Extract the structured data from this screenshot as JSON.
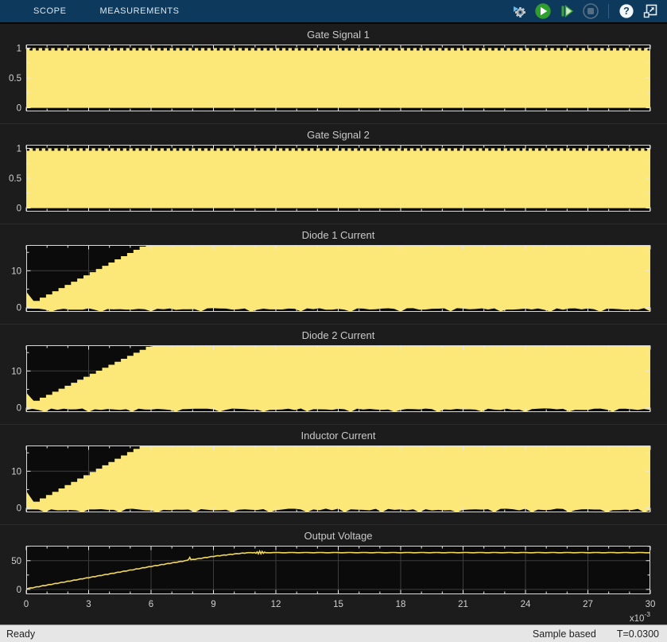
{
  "toolbar": {
    "tabs": [
      {
        "label": "SCOPE"
      },
      {
        "label": "MEASUREMENTS"
      }
    ],
    "buttons": [
      {
        "name": "simulate-settings",
        "icon": "gear-arrow-icon"
      },
      {
        "name": "run",
        "icon": "run-icon"
      },
      {
        "name": "step-forward",
        "icon": "step-forward-icon"
      },
      {
        "name": "stop",
        "icon": "stop-icon",
        "disabled": true
      },
      {
        "name": "help",
        "icon": "help-icon"
      },
      {
        "name": "pop-out",
        "icon": "popout-icon"
      }
    ]
  },
  "status_bar": {
    "left": "Ready",
    "right_primary": "Sample based",
    "right_secondary": "T=0.0300"
  },
  "colors": {
    "toolbar_bg": "#0d3a5c",
    "window_bg": "#1c1c1c",
    "plot_bg": "#0b0b0b",
    "grid": "#3d3d3d",
    "axis": "#dadada",
    "tick": "#e8e8e8",
    "fill_yellow": "#fbe878",
    "line_yellow": "#f1d75c",
    "run_green": "#2da12d",
    "status_bg": "#e6e6e6"
  },
  "chart_data": {
    "x_axis": {
      "xlim": [
        0,
        30
      ],
      "major_tick_step": 3,
      "minor_tick_step": 1,
      "tick_labels": [
        "0",
        "3",
        "6",
        "9",
        "12",
        "15",
        "18",
        "21",
        "24",
        "27",
        "30"
      ],
      "exponent_base": "x10",
      "exponent": "-3",
      "units_note": "time axis shown in seconds x10^-3"
    },
    "panels": [
      {
        "type": "pwm",
        "title": "Gate Signal 1",
        "ylim": [
          -0.06,
          1.06
        ],
        "yticks": [
          {
            "v": 0,
            "label": "0"
          },
          {
            "v": 0.5,
            "label": "0.5"
          },
          {
            "v": 1,
            "label": "1"
          }
        ],
        "yminors": [
          0.25,
          0.75
        ],
        "pwm": {
          "low": 0,
          "high": 1,
          "period_ms": 0.3,
          "on_fraction": 0.55,
          "notch_level": 0.96,
          "phase": 0
        }
      },
      {
        "type": "pwm",
        "title": "Gate Signal 2",
        "ylim": [
          -0.06,
          1.06
        ],
        "yticks": [
          {
            "v": 0,
            "label": "0"
          },
          {
            "v": 0.5,
            "label": "0.5"
          },
          {
            "v": 1,
            "label": "1"
          }
        ],
        "yminors": [
          0.25,
          0.75
        ],
        "pwm": {
          "low": 0,
          "high": 1,
          "period_ms": 0.3,
          "on_fraction": 0.55,
          "notch_level": 0.96,
          "phase": 0.5
        }
      },
      {
        "type": "current",
        "title": "Diode 1 Current",
        "ylim": [
          -1.2,
          17
        ],
        "yticks": [
          {
            "v": 0,
            "label": "0"
          },
          {
            "v": 10,
            "label": "10"
          }
        ],
        "yminors": [
          5,
          15
        ],
        "step_ms": 0.3,
        "envelope": {
          "t0_value": 4.3,
          "dip_value": 1.8,
          "dip_t_ms": 0.35,
          "saturate_t_ms": 5.6
        },
        "bottom_base": -0.2,
        "bottom_jitter": 0.45,
        "deep_spike_depth": -1.05,
        "deep_spike_period_ms": 2.3
      },
      {
        "type": "current",
        "title": "Diode 2 Current",
        "ylim": [
          -1.2,
          17
        ],
        "yticks": [
          {
            "v": 0,
            "label": "0"
          },
          {
            "v": 10,
            "label": "10"
          }
        ],
        "yminors": [
          5,
          15
        ],
        "step_ms": 0.3,
        "envelope": {
          "t0_value": 4.1,
          "dip_value": 1.9,
          "dip_t_ms": 0.35,
          "saturate_t_ms": 5.9
        },
        "bottom_base": -0.2,
        "bottom_jitter": 0.45,
        "deep_spike_depth": -1.0,
        "deep_spike_period_ms": 2.0
      },
      {
        "type": "current",
        "title": "Inductor Current",
        "ylim": [
          -1.2,
          17
        ],
        "yticks": [
          {
            "v": 0,
            "label": "0"
          },
          {
            "v": 10,
            "label": "10"
          }
        ],
        "yminors": [
          5,
          15
        ],
        "step_ms": 0.3,
        "envelope": {
          "t0_value": 4.6,
          "dip_value": 1.7,
          "dip_t_ms": 0.35,
          "saturate_t_ms": 5.45
        },
        "bottom_base": -0.2,
        "bottom_jitter": 0.5,
        "deep_spike_depth": -1.15,
        "deep_spike_period_ms": 1.8
      },
      {
        "type": "line",
        "title": "Output Voltage",
        "ylim": [
          -8.5,
          76
        ],
        "yticks": [
          {
            "v": 0,
            "label": "0"
          },
          {
            "v": 50,
            "label": "50"
          }
        ],
        "yminors": [
          25,
          75
        ],
        "show_x_labels": true,
        "points": [
          [
            0,
            1
          ],
          [
            1,
            7.5
          ],
          [
            2,
            14
          ],
          [
            3,
            20.5
          ],
          [
            4,
            27
          ],
          [
            5,
            33.5
          ],
          [
            6,
            40
          ],
          [
            7,
            46
          ],
          [
            8,
            52
          ],
          [
            9,
            57.5
          ],
          [
            9.6,
            60
          ],
          [
            10.2,
            62.5
          ],
          [
            10.7,
            63.8
          ],
          [
            11,
            64
          ],
          [
            30,
            64
          ]
        ],
        "ripple": {
          "amp": 0.9,
          "period_ms": 0.3,
          "end_t_ms": 10.5,
          "flat_amp": 0.2
        },
        "spikes": [
          {
            "t_ms": 7.85,
            "dv": 5.5
          },
          {
            "t_ms": 11.2,
            "dv": 3.0,
            "width_ms": 0.35
          }
        ],
        "settled_value": 64
      }
    ]
  }
}
